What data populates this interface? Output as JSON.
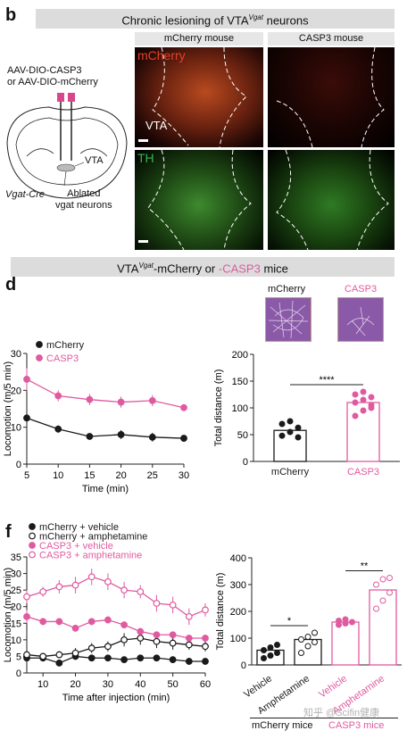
{
  "panel_b": {
    "letter": "b",
    "title_pre": "Chronic lesioning of VTA",
    "title_sup": "Vgat",
    "title_post": " neurons",
    "col1": "mCherry mouse",
    "col2": "CASP3 mouse",
    "row1_label": "mCherry",
    "row2_label": "TH",
    "vta_label": "VTA",
    "virus_line1": "AAV-DIO-CASP3",
    "virus_line2": "or AAV-DIO-mCherry",
    "brain_vta": "VTA",
    "cre": "Vgat-Cre",
    "ablated1": "Ablated",
    "ablated2": "vgat neurons"
  },
  "middle_title": {
    "pre": "VTA",
    "sup": "Vgat",
    "mid": "-mCherry or ",
    "pink": "-CASP3",
    "post": " mice"
  },
  "panel_d": {
    "letter": "d",
    "track_mcherry": "mCherry",
    "track_casp3": "CASP3"
  },
  "panel_f": {
    "letter": "f",
    "group_mcherry": "mCherry mice",
    "group_casp3": "CASP3 mice"
  },
  "watermark": "知乎 @Scifin健康",
  "colors": {
    "pink": "#e05aa0",
    "black": "#1a1a1a",
    "purple": "#8a5aa8"
  },
  "chart_data": [
    {
      "id": "d-line",
      "type": "line",
      "xlabel": "Time (min)",
      "ylabel": "Locomotion (m/5 min)",
      "xlim": [
        5,
        30
      ],
      "ylim": [
        0,
        30
      ],
      "xticks": [
        5,
        10,
        15,
        20,
        25,
        30
      ],
      "yticks": [
        0,
        10,
        20,
        30
      ],
      "legend": "top-left",
      "series": [
        {
          "name": "mCherry",
          "color": "#1a1a1a",
          "filled": true,
          "x": [
            5,
            10,
            15,
            20,
            25,
            30
          ],
          "y": [
            12.5,
            9.5,
            7.5,
            8.0,
            7.3,
            7.0
          ],
          "err": [
            1.0,
            1.0,
            0.8,
            1.2,
            1.2,
            0.8
          ]
        },
        {
          "name": "CASP3",
          "color": "#e05aa0",
          "filled": true,
          "x": [
            5,
            10,
            15,
            20,
            25,
            30
          ],
          "y": [
            23.0,
            18.5,
            17.5,
            16.8,
            17.2,
            15.3
          ],
          "err": [
            3.0,
            1.5,
            1.5,
            1.5,
            1.5,
            0.6
          ]
        }
      ]
    },
    {
      "id": "d-bar",
      "type": "bar",
      "ylabel": "Total distance (m)",
      "ylim": [
        0,
        200
      ],
      "yticks": [
        0,
        50,
        100,
        150,
        200
      ],
      "categories": [
        "mCherry",
        "CASP3"
      ],
      "values": [
        58,
        110
      ],
      "points": [
        [
          48,
          55,
          63,
          70,
          75,
          45
        ],
        [
          85,
          95,
          105,
          110,
          115,
          120,
          125,
          130,
          100
        ]
      ],
      "significance": "****"
    },
    {
      "id": "f-line",
      "type": "line",
      "xlabel": "Time after injection (min)",
      "ylabel": "Locomotion (m/5 min)",
      "xlim": [
        5,
        60
      ],
      "ylim": [
        0,
        35
      ],
      "xticks": [
        10,
        20,
        30,
        40,
        50,
        60
      ],
      "yticks": [
        0,
        5,
        10,
        15,
        20,
        25,
        30,
        35
      ],
      "legend": "top-left",
      "series": [
        {
          "name": "mCherry + vehicle",
          "color": "#1a1a1a",
          "filled": true,
          "x": [
            5,
            10,
            15,
            20,
            25,
            30,
            35,
            40,
            45,
            50,
            55,
            60
          ],
          "y": [
            4.5,
            4.5,
            3.0,
            5.0,
            4.5,
            4.5,
            4.0,
            4.5,
            4.5,
            4.0,
            3.5,
            3.5
          ],
          "err": [
            1,
            1,
            1,
            1,
            1,
            1,
            1,
            1,
            1,
            1,
            1,
            1
          ]
        },
        {
          "name": "mCherry + amphetamine",
          "color": "#1a1a1a",
          "filled": false,
          "x": [
            5,
            10,
            15,
            20,
            25,
            30,
            35,
            40,
            45,
            50,
            55,
            60
          ],
          "y": [
            5.5,
            5.0,
            5.5,
            6.0,
            7.5,
            8.0,
            10.0,
            10.5,
            9.5,
            9.0,
            8.5,
            8.0
          ],
          "err": [
            1,
            1,
            1,
            1.5,
            1.5,
            1.5,
            2,
            2,
            2,
            2,
            1.5,
            1.5
          ]
        },
        {
          "name": "CASP3 + vehicle",
          "color": "#e05aa0",
          "filled": true,
          "x": [
            5,
            10,
            15,
            20,
            25,
            30,
            35,
            40,
            45,
            50,
            55,
            60
          ],
          "y": [
            17,
            15.5,
            15.5,
            13.5,
            15.5,
            16,
            14.5,
            12.5,
            11.5,
            11.5,
            10.5,
            10.5
          ],
          "err": [
            2,
            1,
            1,
            1,
            1,
            1,
            1,
            1,
            1,
            1,
            1,
            1
          ]
        },
        {
          "name": "CASP3 + amphetamine",
          "color": "#e05aa0",
          "filled": false,
          "x": [
            5,
            10,
            15,
            20,
            25,
            30,
            35,
            40,
            45,
            50,
            55,
            60
          ],
          "y": [
            23,
            24.5,
            26,
            26.5,
            29,
            27.5,
            25,
            24.5,
            21,
            20.5,
            17,
            19
          ],
          "err": [
            2,
            1.5,
            2,
            2.5,
            2.5,
            2.5,
            2.5,
            2,
            2.5,
            2.5,
            2.5,
            2
          ]
        }
      ]
    },
    {
      "id": "f-bar",
      "type": "bar",
      "ylabel": "Total distance (m)",
      "ylim": [
        0,
        400
      ],
      "yticks": [
        0,
        100,
        200,
        300,
        400
      ],
      "categories": [
        "Vehicle",
        "Amphetamine",
        "Vehicle",
        "Amphetamine"
      ],
      "values": [
        55,
        95,
        160,
        280
      ],
      "colors": [
        "#1a1a1a",
        "#1a1a1a",
        "#e05aa0",
        "#e05aa0"
      ],
      "points": [
        [
          25,
          35,
          45,
          55,
          65,
          75
        ],
        [
          45,
          70,
          85,
          95,
          105,
          120
        ],
        [
          150,
          155,
          160,
          165,
          170
        ],
        [
          210,
          240,
          270,
          300,
          320,
          325
        ]
      ],
      "significance": [
        "*",
        "**"
      ]
    }
  ]
}
